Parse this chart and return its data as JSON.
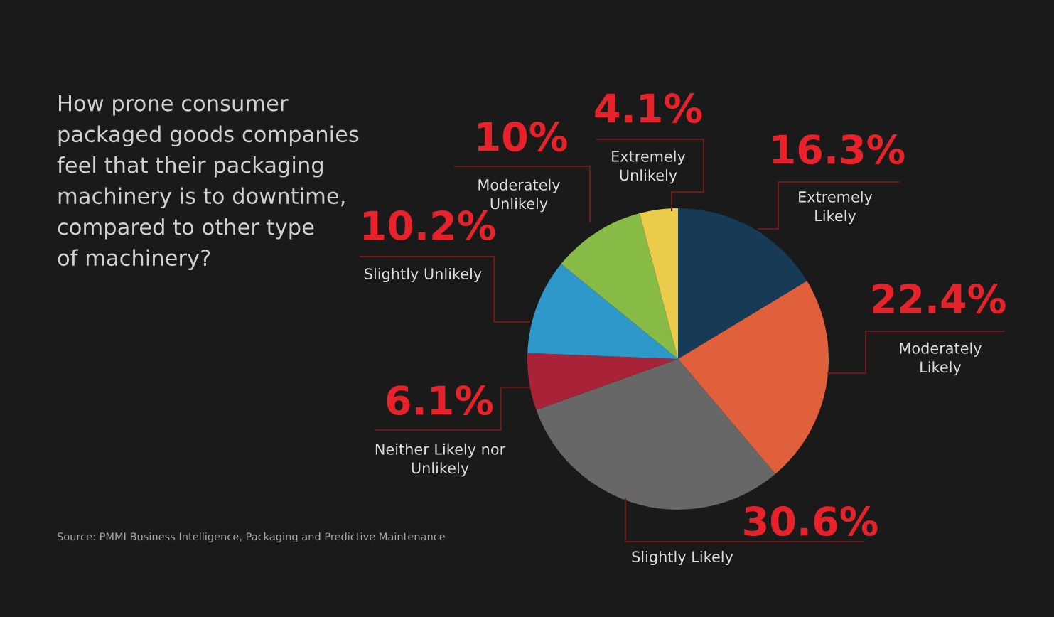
{
  "chart_data": {
    "type": "pie",
    "title": "How prone consumer\npackaged goods companies\nfeel that their packaging\nmachinery is to downtime,\ncompared to other type\nof machinery?",
    "categories": [
      "Extremely\nLikely",
      "Moderately\nLikely",
      "Slightly Likely",
      "Neither Likely nor\nUnlikely",
      "Slightly Unlikely",
      "Moderately\nUnlikely",
      "Extremely\nUnlikely"
    ],
    "values": [
      16.3,
      22.4,
      30.6,
      6.1,
      10.2,
      10,
      4.1
    ],
    "colors": [
      "#173a56",
      "#e0603b",
      "#676767",
      "#a82337",
      "#2f98cb",
      "#88bb45",
      "#eacb4a"
    ],
    "value_labels": [
      "16.3%",
      "22.4%",
      "30.6%",
      "6.1%",
      "10.2%",
      "10%",
      "4.1%"
    ],
    "annotations": [
      "Source: PMMI Business Intelligence, Packaging and Predictive Maintenance"
    ]
  }
}
